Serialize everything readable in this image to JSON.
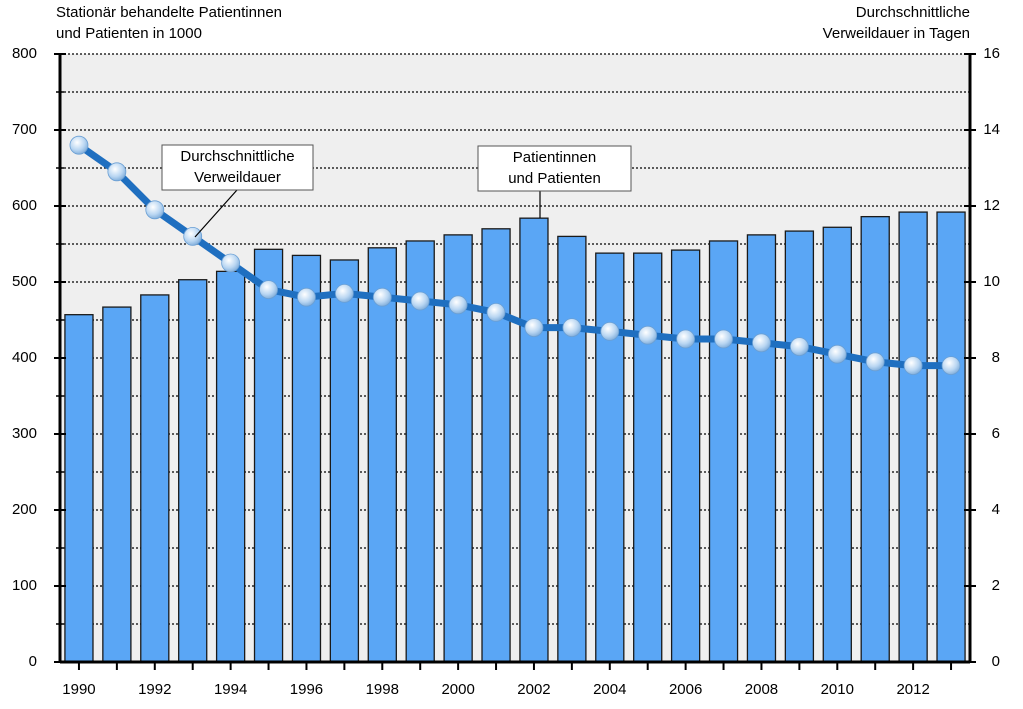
{
  "chart_data": {
    "type": "combo",
    "left_axis_title": [
      "Stationär behandelte Patientinnen",
      "und Patienten in 1000"
    ],
    "right_axis_title": [
      "Durchschnittliche",
      "Verweildauer in Tagen"
    ],
    "categories": [
      "1990",
      null,
      "1992",
      null,
      "1994",
      null,
      "1996",
      null,
      "1998",
      null,
      "2000",
      null,
      "2002",
      null,
      "2004",
      null,
      "2006",
      null,
      "2008",
      null,
      "2010",
      null,
      "2012",
      null
    ],
    "series": [
      {
        "type": "bar",
        "label": [
          "Patientinnen",
          "und Patienten"
        ],
        "color": "#5aa6f5",
        "values": [
          457,
          467,
          483,
          503,
          514,
          543,
          535,
          529,
          545,
          554,
          562,
          570,
          584,
          560,
          538,
          538,
          542,
          554,
          562,
          567,
          572,
          586,
          592,
          592
        ]
      },
      {
        "type": "line",
        "axis": "y2",
        "label": [
          "Durchschnittliche",
          "Verweildauer"
        ],
        "color": "#1f6fc0",
        "values": [
          13.6,
          12.9,
          11.9,
          11.2,
          10.5,
          9.8,
          9.6,
          9.7,
          9.6,
          9.5,
          9.4,
          9.2,
          8.8,
          8.8,
          8.7,
          8.6,
          8.5,
          8.5,
          8.4,
          8.3,
          8.1,
          7.9,
          7.8,
          7.8
        ]
      }
    ],
    "ylim": [
      0,
      800
    ],
    "yticks": [
      0,
      100,
      200,
      300,
      400,
      500,
      600,
      700,
      800
    ],
    "yminorticks": [
      50,
      150,
      250,
      350,
      450,
      550,
      650,
      750
    ],
    "y2lim": [
      0,
      16
    ],
    "y2ticks": [
      0,
      2,
      4,
      6,
      8,
      10,
      12,
      14,
      16
    ],
    "grid": true
  }
}
